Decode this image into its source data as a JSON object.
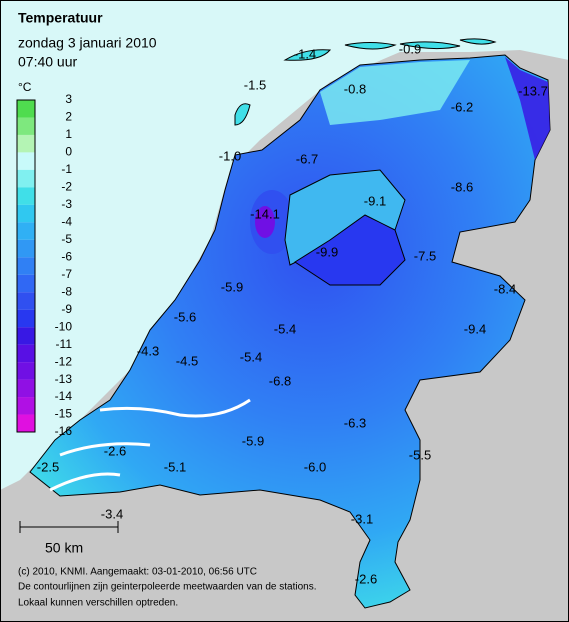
{
  "title": "Temperatuur",
  "date": "zondag 3 januari 2010",
  "time": "07:40 uur",
  "legend": {
    "unit": "°C",
    "labels": [
      "3",
      "2",
      "1",
      "0",
      "-1",
      "-2",
      "-3",
      "-4",
      "-5",
      "-6",
      "-7",
      "-8",
      "-9",
      "-10",
      "-11",
      "-12",
      "-13",
      "-14",
      "-15",
      "-16"
    ],
    "colors": [
      "#4fdc4f",
      "#7ee87e",
      "#b4f4b4",
      "#c8fafa",
      "#80f0f0",
      "#40dfe8",
      "#30c8f0",
      "#30b0f4",
      "#3098f4",
      "#3080f4",
      "#3068f4",
      "#3050f0",
      "#2838f0",
      "#3818e4",
      "#5810e4",
      "#7010e4",
      "#9010e4",
      "#b010e4",
      "#e010e0"
    ]
  },
  "stations": [
    "-1.4",
    "-0.9",
    "-1.5",
    "-0.8",
    "-6.2",
    "-13.7",
    "-1.0",
    "-6.7",
    "-9.1",
    "-8.6",
    "-14.1",
    "-9.9",
    "-7.5",
    "-8.4",
    "-5.9",
    "-5.6",
    "-5.4",
    "-9.4",
    "-4.3",
    "-4.5",
    "-5.4",
    "-6.8",
    "-6.3",
    "-5.9",
    "-2.6",
    "-5.5",
    "-6.0",
    "-5.1",
    "-2.5",
    "-3.4",
    "-3.1",
    "-2.6"
  ],
  "scale": "50 km",
  "footer": [
    "(c) 2010, KNMI. Aangemaakt: 03-01-2010, 06:56 UTC",
    "De contourlijnen zijn geinterpoleerde meetwaarden van de stations.",
    "Lokaal kunnen verschillen optreden."
  ]
}
